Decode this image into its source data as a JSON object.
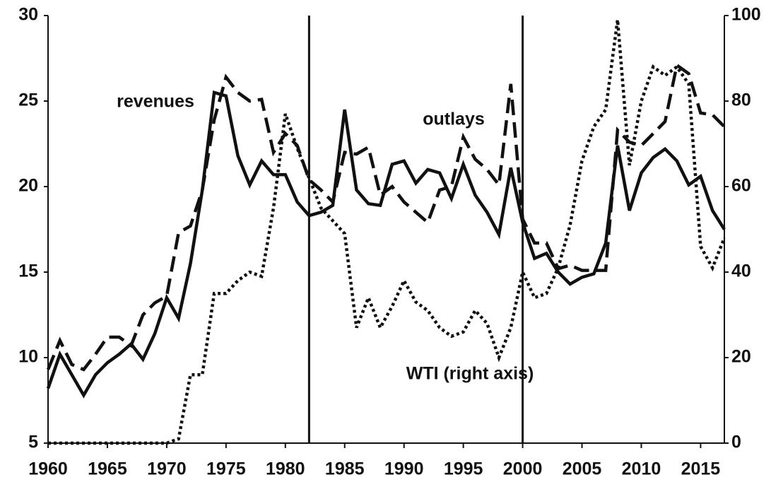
{
  "chart_data": {
    "type": "line",
    "x": [
      1960,
      1961,
      1962,
      1963,
      1964,
      1965,
      1966,
      1967,
      1968,
      1969,
      1970,
      1971,
      1972,
      1973,
      1974,
      1975,
      1976,
      1977,
      1978,
      1979,
      1980,
      1981,
      1982,
      1983,
      1984,
      1985,
      1986,
      1987,
      1988,
      1989,
      1990,
      1991,
      1992,
      1993,
      1994,
      1995,
      1996,
      1997,
      1998,
      1999,
      2000,
      2001,
      2002,
      2003,
      2004,
      2005,
      2006,
      2007,
      2008,
      2009,
      2010,
      2011,
      2012,
      2013,
      2014,
      2015,
      2016,
      2017
    ],
    "series": [
      {
        "name": "revenues",
        "color": "#111111",
        "style": "solid",
        "values": [
          8.2,
          10.2,
          9.0,
          7.8,
          9.0,
          9.7,
          10.2,
          10.8,
          9.9,
          11.4,
          13.5,
          12.3,
          15.5,
          19.8,
          25.5,
          25.3,
          21.8,
          20.1,
          21.5,
          20.7,
          20.7,
          19.1,
          18.3,
          18.5,
          18.9,
          24.5,
          19.8,
          19.0,
          18.9,
          21.3,
          21.5,
          20.2,
          21.0,
          20.8,
          19.3,
          21.3,
          19.5,
          18.5,
          17.2,
          21.1,
          17.9,
          15.8,
          16.1,
          15.0,
          14.3,
          14.7,
          14.9,
          16.7,
          22.4,
          18.6,
          20.8,
          21.7,
          22.2,
          21.5,
          20.1,
          20.6,
          18.6,
          17.5
        ]
      },
      {
        "name": "outlays",
        "color": "#111111",
        "style": "dashed",
        "values": [
          9.3,
          11.0,
          9.6,
          9.3,
          10.2,
          11.2,
          11.2,
          10.7,
          12.5,
          13.2,
          13.6,
          17.3,
          17.7,
          19.8,
          23.9,
          26.4,
          25.5,
          25.0,
          25.1,
          22.0,
          23.1,
          22.4,
          20.4,
          19.8,
          19.1,
          22.0,
          21.9,
          22.3,
          19.5,
          20.0,
          19.1,
          18.5,
          17.9,
          19.8,
          20.0,
          22.9,
          21.6,
          21.0,
          20.1,
          26.0,
          18.1,
          16.7,
          16.7,
          15.2,
          15.4,
          15.1,
          15.1,
          15.1,
          23.3,
          22.6,
          22.4,
          23.1,
          23.8,
          27.1,
          26.6,
          24.3,
          24.2,
          23.5
        ]
      },
      {
        "name": "WTI (right axis)",
        "color": "#111111",
        "style": "dotted",
        "axis": "y2",
        "values": [
          0,
          0,
          0,
          0,
          0,
          0,
          0,
          0,
          0,
          0,
          0,
          1,
          16,
          16,
          35,
          35,
          38,
          40,
          39,
          55,
          77,
          69,
          62,
          55,
          52,
          49,
          27,
          34,
          27,
          32,
          38,
          33,
          31,
          27,
          25,
          26,
          31,
          28,
          20,
          27,
          40,
          34,
          35,
          41,
          51,
          66,
          74,
          78,
          99,
          65,
          80,
          88,
          86,
          88,
          84,
          46,
          41,
          48
        ]
      }
    ],
    "xlim": [
      1960,
      2017
    ],
    "xticks": [
      1960,
      1965,
      1970,
      1975,
      1980,
      1985,
      1990,
      1995,
      2000,
      2005,
      2010,
      2015
    ],
    "ylim": [
      5,
      30
    ],
    "yticks": [
      5,
      10,
      15,
      20,
      25,
      30
    ],
    "y2lim": [
      0,
      100
    ],
    "y2ticks": [
      0,
      20,
      40,
      60,
      80,
      100
    ],
    "vlines": [
      1982,
      2000
    ],
    "grid": false
  }
}
